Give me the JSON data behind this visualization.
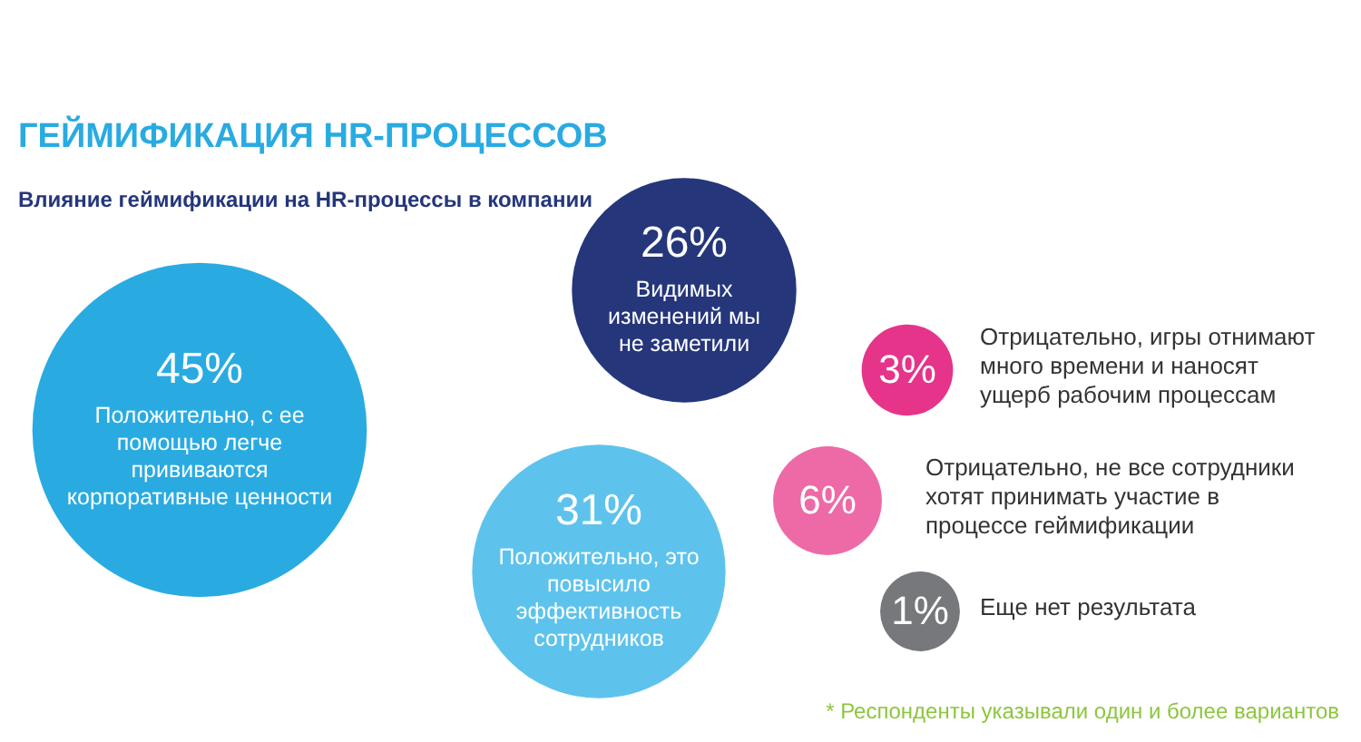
{
  "chart_data": {
    "type": "other",
    "title": "ГЕЙМИФИКАЦИЯ HR-ПРОЦЕССОВ",
    "subtitle": "Влияние геймификации на HR-процессы в компании",
    "categories": [
      "Положительно, с ее\nпомощью легче\nпрививаются\nкорпоративные ценности",
      "Положительно, это\nповысило\nэффективность\nсотрудников",
      "Видимых\nизменений мы\nне заметили",
      "Отрицательно, игры отнимают\nмного времени и наносят\nущерб рабочим процессам",
      "Отрицательно, не все сотрудники\nхотят принимать участие в\nпроцессе геймификации",
      "Еще нет результата"
    ],
    "values": [
      45,
      31,
      26,
      3,
      6,
      1
    ],
    "value_labels": [
      "45%",
      "31%",
      "26%",
      "3%",
      "6%",
      "1%"
    ],
    "colors": [
      "#29abe2",
      "#5ec3ec",
      "#25367b",
      "#e5348a",
      "#ee6aa7",
      "#77787b"
    ],
    "annotations": [
      "* Респонденты указывали один и более вариантов"
    ]
  }
}
